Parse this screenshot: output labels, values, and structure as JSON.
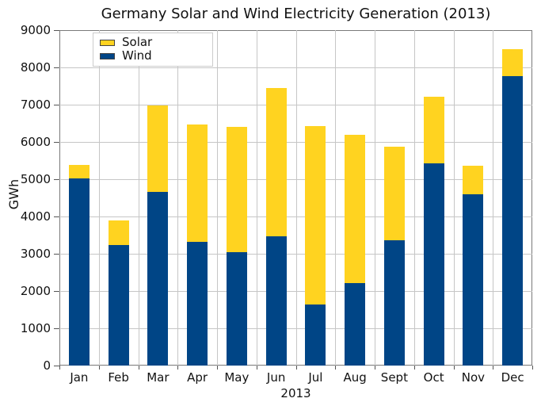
{
  "chart_data": {
    "type": "bar",
    "stacked": true,
    "title": "Germany Solar and Wind Electricity Generation (2013)",
    "xlabel": "2013",
    "ylabel": "GWh",
    "ylim": [
      0,
      9000
    ],
    "ytick_step": 1000,
    "ytick_labels": [
      "0",
      "1000",
      "2000",
      "3000",
      "4000",
      "5000",
      "6000",
      "7000",
      "8000",
      "9000"
    ],
    "grid": true,
    "legend_position": "top-left",
    "categories": [
      "Jan",
      "Feb",
      "Mar",
      "Apr",
      "May",
      "Jun",
      "Jul",
      "Aug",
      "Sept",
      "Oct",
      "Nov",
      "Dec"
    ],
    "series": [
      {
        "name": "Wind",
        "color": "#004586",
        "values": [
          5020,
          3230,
          4670,
          3310,
          3050,
          3460,
          1640,
          2210,
          3360,
          5420,
          4600,
          7760
        ]
      },
      {
        "name": "Solar",
        "color": "#FFD320",
        "values": [
          360,
          660,
          2310,
          3160,
          3360,
          3990,
          4790,
          3980,
          2520,
          1790,
          760,
          720
        ]
      }
    ]
  },
  "legend": {
    "items": [
      {
        "label": "Solar",
        "color": "#FFD320"
      },
      {
        "label": "Wind",
        "color": "#004586"
      }
    ]
  },
  "colors": {
    "wind": "#004586",
    "solar": "#FFD320",
    "gridline": "#c6c6c6",
    "axis": "#555555"
  }
}
